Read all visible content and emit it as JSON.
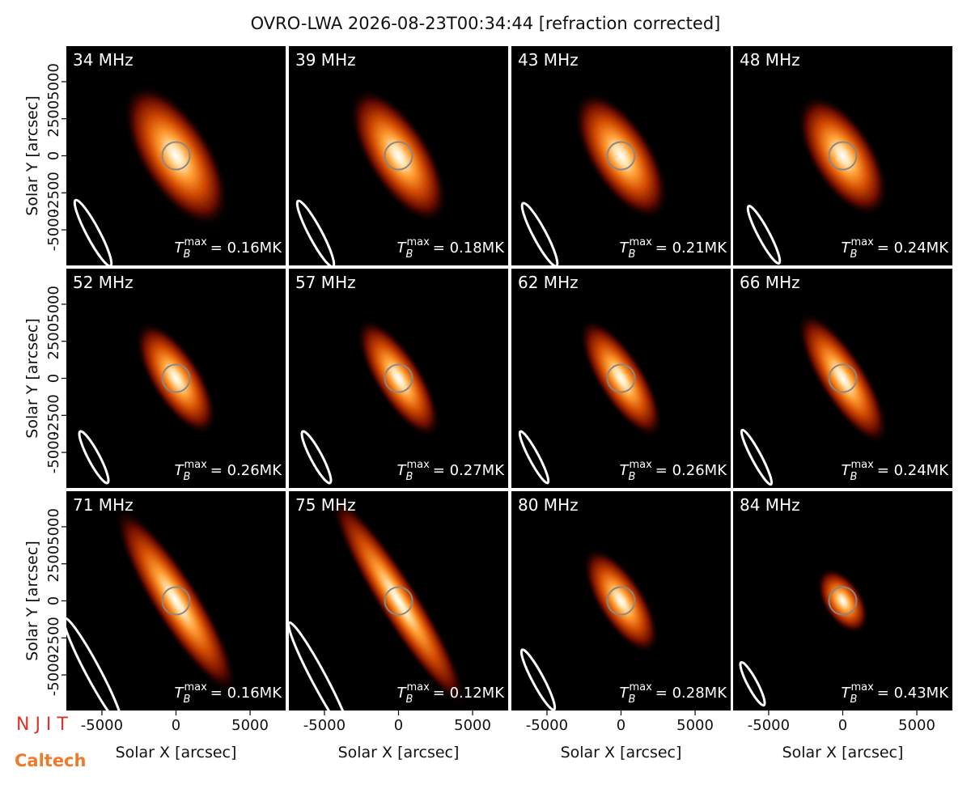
{
  "title": "OVRO-LWA 2026-08-23T00:34:44 [refraction corrected]",
  "logos": [
    "N J I T",
    "Caltech"
  ],
  "tb_symbol": {
    "base": "T",
    "sub": "B",
    "sup": "max"
  },
  "chart_data": [
    {
      "type": "image",
      "title": "34 MHz",
      "values": [
        0.16
      ],
      "value_labels": [
        "= 0.16MK"
      ],
      "xlim": [
        -7400,
        7400
      ],
      "ylim": [
        -7400,
        7400
      ],
      "yticks": [
        -5000,
        -2500,
        0,
        2500,
        5000
      ],
      "ylabel": "Solar Y [arcsec]"
    },
    {
      "type": "image",
      "title": "39 MHz",
      "values": [
        0.18
      ],
      "value_labels": [
        "= 0.18MK"
      ],
      "xlim": [
        -7400,
        7400
      ],
      "ylim": [
        -7400,
        7400
      ]
    },
    {
      "type": "image",
      "title": "43 MHz",
      "values": [
        0.21
      ],
      "value_labels": [
        "= 0.21MK"
      ],
      "xlim": [
        -7400,
        7400
      ],
      "ylim": [
        -7400,
        7400
      ]
    },
    {
      "type": "image",
      "title": "48 MHz",
      "values": [
        0.24
      ],
      "value_labels": [
        "= 0.24MK"
      ],
      "xlim": [
        -7400,
        7400
      ],
      "ylim": [
        -7400,
        7400
      ]
    },
    {
      "type": "image",
      "title": "52 MHz",
      "values": [
        0.26
      ],
      "value_labels": [
        "= 0.26MK"
      ],
      "xlim": [
        -7400,
        7400
      ],
      "ylim": [
        -7400,
        7400
      ],
      "yticks": [
        -5000,
        -2500,
        0,
        2500,
        5000
      ],
      "ylabel": "Solar Y [arcsec]"
    },
    {
      "type": "image",
      "title": "57 MHz",
      "values": [
        0.27
      ],
      "value_labels": [
        "= 0.27MK"
      ],
      "xlim": [
        -7400,
        7400
      ],
      "ylim": [
        -7400,
        7400
      ]
    },
    {
      "type": "image",
      "title": "62 MHz",
      "values": [
        0.26
      ],
      "value_labels": [
        "= 0.26MK"
      ],
      "xlim": [
        -7400,
        7400
      ],
      "ylim": [
        -7400,
        7400
      ]
    },
    {
      "type": "image",
      "title": "66 MHz",
      "values": [
        0.24
      ],
      "value_labels": [
        "= 0.24MK"
      ],
      "xlim": [
        -7400,
        7400
      ],
      "ylim": [
        -7400,
        7400
      ]
    },
    {
      "type": "image",
      "title": "71 MHz",
      "values": [
        0.16
      ],
      "value_labels": [
        "= 0.16MK"
      ],
      "xlim": [
        -7400,
        7400
      ],
      "ylim": [
        -7400,
        7400
      ],
      "yticks": [
        -5000,
        -2500,
        0,
        2500,
        5000
      ],
      "ylabel": "Solar Y [arcsec]",
      "xticks": [
        -5000,
        0,
        5000
      ],
      "xlabel": "Solar X [arcsec]"
    },
    {
      "type": "image",
      "title": "75 MHz",
      "values": [
        0.12
      ],
      "value_labels": [
        "= 0.12MK"
      ],
      "xlim": [
        -7400,
        7400
      ],
      "ylim": [
        -7400,
        7400
      ],
      "xticks": [
        -5000,
        0,
        5000
      ],
      "xlabel": "Solar X [arcsec]"
    },
    {
      "type": "image",
      "title": "80 MHz",
      "values": [
        0.28
      ],
      "value_labels": [
        "= 0.28MK"
      ],
      "xlim": [
        -7400,
        7400
      ],
      "ylim": [
        -7400,
        7400
      ],
      "xticks": [
        -5000,
        0,
        5000
      ],
      "xlabel": "Solar X [arcsec]"
    },
    {
      "type": "image",
      "title": "84 MHz",
      "values": [
        0.43
      ],
      "value_labels": [
        "= 0.43MK"
      ],
      "xlim": [
        -7400,
        7400
      ],
      "ylim": [
        -7400,
        7400
      ],
      "xticks": [
        -5000,
        0,
        5000
      ],
      "xlabel": "Solar X [arcsec]"
    }
  ]
}
